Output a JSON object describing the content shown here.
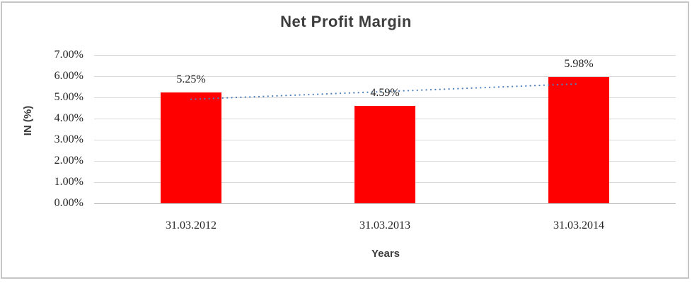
{
  "chart_data": {
    "type": "bar",
    "title": "Net Profit Margin",
    "xlabel": "Years",
    "ylabel": "IN (%)",
    "categories": [
      "31.03.2012",
      "31.03.2013",
      "31.03.2014"
    ],
    "values": [
      5.25,
      4.59,
      5.98
    ],
    "data_labels": [
      "5.25%",
      "4.59%",
      "5.98%"
    ],
    "ylim": [
      0,
      7
    ],
    "ytick_step": 1,
    "ytick_labels": [
      "0.00%",
      "1.00%",
      "2.00%",
      "3.00%",
      "4.00%",
      "5.00%",
      "6.00%",
      "7.00%"
    ],
    "grid": true,
    "legend_position": "none",
    "bar_color": "#ff0000",
    "gridline_color": "#d9d9d9",
    "trendline": {
      "type": "linear",
      "style": "dotted",
      "color": "#4f81bd",
      "start_value": 4.91,
      "end_value": 5.64
    }
  },
  "frame": {
    "border_color": "#c6c6c6",
    "background": "#ffffff"
  }
}
